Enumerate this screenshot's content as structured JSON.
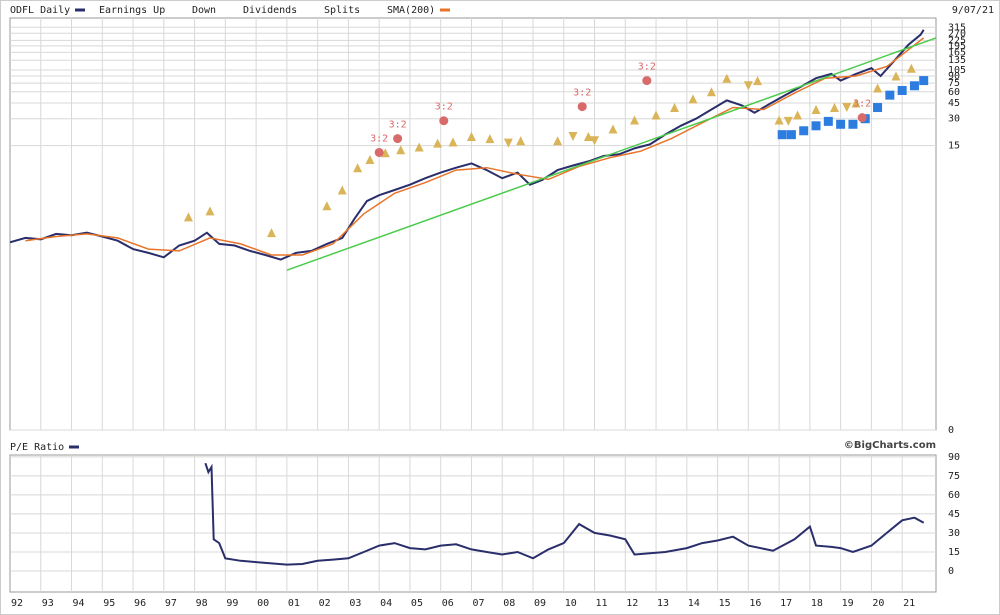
{
  "chart_data": [
    {
      "type": "line",
      "date": "9/07/21",
      "ylog": true,
      "xlim": [
        1992,
        2022.1
      ],
      "ylim": [
        0.01,
        400
      ],
      "yticks": [
        315,
        270,
        225,
        195,
        165,
        135,
        105,
        90,
        75,
        60,
        45,
        30,
        15,
        {
          "value": 0.01,
          "label": "0"
        }
      ],
      "grid": true,
      "legend": "top-left",
      "series": [
        {
          "name": "ODFL Daily",
          "type": "line",
          "color": "#2a2e6b",
          "x": [
            1992.0,
            1992.5,
            1993.0,
            1993.5,
            1994.0,
            1994.5,
            1995.0,
            1995.5,
            1996.0,
            1996.5,
            1997.0,
            1997.5,
            1998.0,
            1998.4,
            1998.8,
            1999.3,
            1999.8,
            2000.3,
            2000.8,
            2001.3,
            2001.8,
            2002.3,
            2002.8,
            2003.2,
            2003.6,
            2004.0,
            2004.5,
            2005.0,
            2005.5,
            2006.0,
            2006.5,
            2007.0,
            2007.5,
            2008.0,
            2008.5,
            2008.9,
            2009.3,
            2009.8,
            2010.3,
            2010.8,
            2011.3,
            2011.8,
            2012.3,
            2012.8,
            2013.3,
            2013.8,
            2014.3,
            2014.8,
            2015.3,
            2015.8,
            2016.2,
            2016.7,
            2017.2,
            2017.7,
            2018.2,
            2018.7,
            2019.0,
            2019.5,
            2020.0,
            2020.3,
            2020.8,
            2021.2,
            2021.6,
            2021.7
          ],
          "values": [
            1.25,
            1.4,
            1.35,
            1.55,
            1.5,
            1.6,
            1.45,
            1.3,
            1.05,
            0.95,
            0.85,
            1.15,
            1.3,
            1.6,
            1.2,
            1.15,
            1.0,
            0.9,
            0.8,
            0.95,
            1.0,
            1.2,
            1.4,
            2.3,
            3.6,
            4.2,
            4.8,
            5.5,
            6.5,
            7.5,
            8.5,
            9.5,
            8.0,
            6.5,
            7.5,
            5.5,
            6.2,
            8.0,
            9.0,
            10.0,
            11.5,
            12.0,
            14,
            15.5,
            20,
            25,
            30,
            38,
            48,
            42,
            35,
            44,
            55,
            68,
            85,
            95,
            80,
            95,
            110,
            90,
            140,
            200,
            260,
            295
          ]
        },
        {
          "name": "Earnings Up",
          "type": "scatter",
          "marker": "triangle-up",
          "color": "#d9b458",
          "x": [
            1997.8,
            1998.5,
            2000.5,
            2002.3,
            2002.8,
            2003.3,
            2003.7,
            2004.2,
            2004.7,
            2005.3,
            2005.9,
            2006.4,
            2007.0,
            2007.6,
            2008.6,
            2009.8,
            2010.8,
            2011.6,
            2012.3,
            2013.0,
            2013.6,
            2014.2,
            2014.8,
            2015.3,
            2016.3,
            2017.0,
            2017.6,
            2018.2,
            2018.8,
            2019.5,
            2020.2,
            2020.8,
            2021.3
          ],
          "values": [
            2.4,
            2.8,
            1.6,
            3.2,
            4.8,
            8.5,
            10.5,
            12.5,
            13.5,
            14.5,
            16,
            16.5,
            19,
            18,
            17,
            17,
            19,
            23,
            29,
            33,
            40,
            50,
            60,
            85,
            80,
            29,
            33,
            38,
            40,
            45,
            66,
            90,
            110
          ]
        },
        {
          "name": "Down",
          "type": "scatter",
          "marker": "triangle-down",
          "color": "#d9b458",
          "x": [
            2008.2,
            2010.3,
            2011.0,
            2016.0,
            2017.3,
            2019.2
          ],
          "values": [
            16,
            19,
            17,
            70,
            28,
            40
          ]
        },
        {
          "name": "Dividends",
          "type": "scatter",
          "marker": "square",
          "color": "#2d7de0",
          "x": [
            2017.1,
            2017.4,
            2017.8,
            2018.2,
            2018.6,
            2019.0,
            2019.4,
            2019.8,
            2020.2,
            2020.6,
            2021.0,
            2021.4,
            2021.7
          ],
          "values": [
            19.9,
            19.9,
            22,
            25,
            28,
            26,
            26,
            30,
            40,
            55,
            62,
            70,
            80
          ]
        },
        {
          "name": "Splits",
          "type": "scatter",
          "marker": "circle",
          "color": "#d96a6a",
          "x": [
            2004.0,
            2004.6,
            2006.1,
            2010.6,
            2012.7,
            2019.7
          ],
          "values": [
            12.6,
            18,
            28.5,
            41,
            80,
            30.8
          ],
          "labels": [
            "3:2",
            "3:2",
            "3:2",
            "3:2",
            "3:2",
            "3:2"
          ]
        },
        {
          "name": "SMA(200)",
          "type": "line",
          "color": "#e8742a",
          "x": [
            1992.5,
            1993.5,
            1994.5,
            1995.5,
            1996.5,
            1997.5,
            1998.5,
            1999.5,
            2000.5,
            2001.5,
            2002.5,
            2003.5,
            2004.5,
            2005.5,
            2006.5,
            2007.5,
            2008.5,
            2009.5,
            2010.5,
            2011.5,
            2012.5,
            2013.5,
            2014.5,
            2015.5,
            2016.5,
            2017.5,
            2018.5,
            2019.5,
            2020.5,
            2021.7
          ],
          "values": [
            1.3,
            1.45,
            1.55,
            1.4,
            1.05,
            1.0,
            1.4,
            1.2,
            0.9,
            0.9,
            1.2,
            2.6,
            4.4,
            5.8,
            8.0,
            8.5,
            7.2,
            6.3,
            8.8,
            11,
            13,
            18,
            27,
            40,
            38,
            58,
            85,
            90,
            115,
            240
          ]
        },
        {
          "type": "line",
          "color": "#4ccc4c",
          "x": [
            2001.0,
            2022.1
          ],
          "values": [
            0.61,
            240
          ]
        }
      ]
    },
    {
      "type": "line",
      "xlim": [
        1992,
        2022.1
      ],
      "ylim": [
        -16.6,
        91.5
      ],
      "yticks": [
        90,
        75,
        60,
        45,
        30,
        15,
        0
      ],
      "watermark": "©BigCharts.com",
      "xticks": [
        {
          "value": 1992,
          "label": "92"
        },
        {
          "value": 1993,
          "label": "93"
        },
        {
          "value": 1994,
          "label": "94"
        },
        {
          "value": 1995,
          "label": "95"
        },
        {
          "value": 1996,
          "label": "96"
        },
        {
          "value": 1997,
          "label": "97"
        },
        {
          "value": 1998,
          "label": "98"
        },
        {
          "value": 1999,
          "label": "99"
        },
        {
          "value": 2000,
          "label": "00"
        },
        {
          "value": 2001,
          "label": "01"
        },
        {
          "value": 2002,
          "label": "02"
        },
        {
          "value": 2003,
          "label": "03"
        },
        {
          "value": 2004,
          "label": "04"
        },
        {
          "value": 2005,
          "label": "05"
        },
        {
          "value": 2006,
          "label": "06"
        },
        {
          "value": 2007,
          "label": "07"
        },
        {
          "value": 2008,
          "label": "08"
        },
        {
          "value": 2009,
          "label": "09"
        },
        {
          "value": 2010,
          "label": "10"
        },
        {
          "value": 2011,
          "label": "11"
        },
        {
          "value": 2012,
          "label": "12"
        },
        {
          "value": 2013,
          "label": "13"
        },
        {
          "value": 2014,
          "label": "14"
        },
        {
          "value": 2015,
          "label": "15"
        },
        {
          "value": 2016,
          "label": "16"
        },
        {
          "value": 2017,
          "label": "17"
        },
        {
          "value": 2018,
          "label": "18"
        },
        {
          "value": 2019,
          "label": "19"
        },
        {
          "value": 2020,
          "label": "20"
        },
        {
          "value": 2021,
          "label": "21"
        }
      ],
      "grid": true,
      "legend": "top-left",
      "series": [
        {
          "name": "P/E Ratio",
          "type": "line",
          "color": "#2a2e6b",
          "x": [
            1998.35,
            1998.45,
            1998.55,
            1998.62,
            1998.8,
            1999.0,
            1999.5,
            2000.0,
            2000.5,
            2001.0,
            2001.5,
            2002.0,
            2002.5,
            2003.0,
            2003.5,
            2004.0,
            2004.5,
            2005.0,
            2005.5,
            2006.0,
            2006.5,
            2007.0,
            2007.5,
            2008.0,
            2008.5,
            2009.0,
            2009.5,
            2010.0,
            2010.5,
            2011.0,
            2011.5,
            2012.0,
            2012.3,
            2012.8,
            2013.3,
            2014.0,
            2014.5,
            2015.0,
            2015.5,
            2016.0,
            2016.8,
            2017.5,
            2018.0,
            2018.2,
            2018.7,
            2019.0,
            2019.4,
            2020.0,
            2020.5,
            2021.0,
            2021.4,
            2021.7
          ],
          "values": [
            85,
            78,
            82,
            25,
            22,
            10,
            8,
            7,
            6,
            5,
            5.5,
            8,
            9,
            10,
            15,
            20,
            22,
            18,
            17,
            20,
            21,
            17,
            15,
            13,
            15,
            10,
            17,
            22,
            37,
            30,
            28,
            25,
            13,
            14,
            15,
            18,
            22,
            24,
            27,
            20,
            16,
            25,
            35,
            20,
            19,
            18,
            15,
            20,
            30,
            40,
            42,
            38
          ]
        }
      ]
    }
  ]
}
